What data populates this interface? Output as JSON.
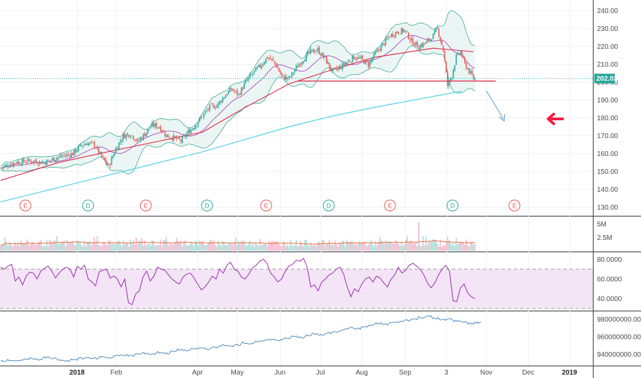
{
  "colors": {
    "bull": "#26a69a",
    "bear": "#ef5350",
    "ma_slow": "#e0304e",
    "ma_long": "#4dd0e1",
    "bollinger": "#5bb5a9",
    "basis": "#ab47bc",
    "rsi_line": "#9c27b0",
    "rsi_band": "#f3e5f5",
    "obv_line": "#3f7fb5",
    "price_label_bg": "#26a69a",
    "event_e": "#ef5350",
    "event_d": "#26a69a",
    "arrow_red": "#ff1744",
    "arrow_blue": "#6fa7c8"
  },
  "chart_data": [
    {
      "type": "candlestick",
      "panel": "price",
      "ylim": [
        125,
        243
      ],
      "yticks": [
        "240.00",
        "230.00",
        "220.00",
        "210.00",
        "200.00",
        "190.00",
        "180.00",
        "170.00",
        "160.00",
        "150.00",
        "140.00",
        "130.00"
      ],
      "last_price_label": "202.02",
      "last_price": 202.02,
      "anchors": [
        [
          0,
          152
        ],
        [
          10,
          155
        ],
        [
          20,
          156
        ],
        [
          30,
          155
        ],
        [
          40,
          158
        ],
        [
          50,
          160
        ],
        [
          55,
          164
        ],
        [
          60,
          166
        ],
        [
          65,
          165
        ],
        [
          70,
          158
        ],
        [
          75,
          153
        ],
        [
          80,
          163
        ],
        [
          85,
          170
        ],
        [
          90,
          171
        ],
        [
          95,
          167
        ],
        [
          100,
          171
        ],
        [
          105,
          176
        ],
        [
          110,
          175
        ],
        [
          115,
          170
        ],
        [
          120,
          169
        ],
        [
          125,
          167
        ],
        [
          130,
          172
        ],
        [
          135,
          176
        ],
        [
          140,
          181
        ],
        [
          145,
          186
        ],
        [
          150,
          187
        ],
        [
          155,
          192
        ],
        [
          160,
          196
        ],
        [
          165,
          193
        ],
        [
          170,
          200
        ],
        [
          175,
          205
        ],
        [
          180,
          209
        ],
        [
          185,
          214
        ],
        [
          190,
          211
        ],
        [
          195,
          203
        ],
        [
          200,
          202
        ],
        [
          205,
          208
        ],
        [
          210,
          213
        ],
        [
          215,
          217
        ],
        [
          220,
          218
        ],
        [
          225,
          213
        ],
        [
          230,
          206
        ],
        [
          235,
          208
        ],
        [
          240,
          211
        ],
        [
          245,
          214
        ],
        [
          250,
          213
        ],
        [
          255,
          210
        ],
        [
          260,
          216
        ],
        [
          265,
          221
        ],
        [
          270,
          226
        ],
        [
          275,
          228
        ],
        [
          280,
          229
        ],
        [
          285,
          223
        ],
        [
          290,
          220
        ],
        [
          295,
          222
        ],
        [
          300,
          226
        ],
        [
          303,
          230
        ],
        [
          305,
          224
        ],
        [
          307,
          218
        ],
        [
          310,
          198
        ],
        [
          313,
          204
        ],
        [
          316,
          214
        ],
        [
          319,
          217
        ],
        [
          322,
          210
        ],
        [
          325,
          206
        ],
        [
          328,
          202
        ]
      ],
      "volume_spike_index": 290
    },
    {
      "type": "line",
      "panel": "price",
      "series": [
        {
          "role": "slow_ma",
          "x": [
            0,
            40,
            80,
            110,
            140,
            170,
            200,
            230,
            260,
            300,
            328
          ],
          "values": [
            145,
            155,
            162,
            167,
            172,
            186,
            199,
            207,
            214,
            219,
            217
          ]
        },
        {
          "role": "long_ma",
          "x": [
            0,
            40,
            80,
            110,
            140,
            170,
            200,
            230,
            260,
            300,
            320
          ],
          "values": [
            133,
            141,
            149,
            155,
            161,
            168,
            175,
            181,
            186,
            192,
            195
          ]
        },
        {
          "role": "support_line",
          "x": [
            206,
            330
          ],
          "values": [
            200.6,
            200.6
          ]
        }
      ]
    },
    {
      "type": "bar",
      "panel": "volume",
      "yticks": [
        "5M",
        "2.5M"
      ],
      "ylim": [
        0,
        6
      ]
    },
    {
      "type": "line",
      "panel": "rsi",
      "ylim": [
        30,
        83
      ],
      "yticks": [
        "80.0000",
        "60.0000",
        "40.0000"
      ],
      "band": [
        30,
        70
      ],
      "values": [
        72,
        70,
        73,
        75,
        58,
        62,
        54,
        63,
        67,
        66,
        60,
        68,
        71,
        73,
        68,
        61,
        66,
        70,
        72,
        70,
        62,
        73,
        70,
        74,
        60,
        57,
        53,
        67,
        69,
        70,
        61,
        63,
        60,
        52,
        60,
        36,
        34,
        45,
        48,
        62,
        68,
        58,
        63,
        72,
        70,
        69,
        64,
        60,
        57,
        55,
        62,
        65,
        66,
        61,
        55,
        49,
        52,
        57,
        63,
        60,
        70,
        66,
        74,
        77,
        70,
        68,
        62,
        60,
        65,
        71,
        74,
        78,
        80,
        76,
        66,
        62,
        57,
        60,
        68,
        73,
        75,
        79,
        78,
        81,
        72,
        52,
        54,
        48,
        57,
        60,
        64,
        66,
        70,
        72,
        65,
        52,
        42,
        50,
        47,
        55,
        60,
        62,
        57,
        63,
        61,
        56,
        52,
        60,
        64,
        72,
        66,
        69,
        74,
        76,
        73,
        70,
        64,
        56,
        51,
        56,
        64,
        70,
        74,
        68,
        38,
        37,
        51,
        55,
        46,
        42,
        40
      ]
    },
    {
      "type": "line",
      "panel": "obv",
      "yticks": [
        "980000000.0000",
        "960000000.0000",
        "940000000.0000"
      ],
      "ylim": [
        930000000,
        985000000
      ],
      "values": [
        932,
        933,
        932,
        934,
        935,
        934,
        936,
        935,
        933,
        932,
        934,
        935,
        936,
        935,
        937,
        936,
        938,
        939,
        938,
        940,
        941,
        940,
        942,
        941,
        943,
        945,
        944,
        946,
        947,
        946,
        948,
        950,
        949,
        951,
        953,
        952,
        954,
        956,
        957,
        956,
        958,
        960,
        959,
        961,
        963,
        962,
        964,
        966,
        968,
        970,
        969,
        971,
        973,
        975,
        974,
        976,
        977,
        979,
        980,
        982,
        983,
        981,
        979,
        980,
        978,
        977,
        975,
        976
      ]
    }
  ],
  "x_axis": {
    "labels": [
      {
        "text": "2018",
        "bold": true
      },
      {
        "text": "Feb"
      },
      {
        "text": "Apr"
      },
      {
        "text": "May"
      },
      {
        "text": "Jun"
      },
      {
        "text": "Jul"
      },
      {
        "text": "Aug"
      },
      {
        "text": "Sep"
      },
      {
        "text": "3"
      },
      {
        "text": "Nov"
      },
      {
        "text": "Dec"
      },
      {
        "text": "2019",
        "bold": true
      }
    ]
  },
  "events": [
    {
      "letter": "E",
      "kind": "earnings"
    },
    {
      "letter": "D",
      "kind": "dividend"
    },
    {
      "letter": "E",
      "kind": "earnings"
    },
    {
      "letter": "D",
      "kind": "dividend"
    },
    {
      "letter": "E",
      "kind": "earnings"
    },
    {
      "letter": "D",
      "kind": "dividend"
    },
    {
      "letter": "E",
      "kind": "earnings"
    },
    {
      "letter": "D",
      "kind": "dividend"
    },
    {
      "letter": "E",
      "kind": "earnings"
    }
  ]
}
